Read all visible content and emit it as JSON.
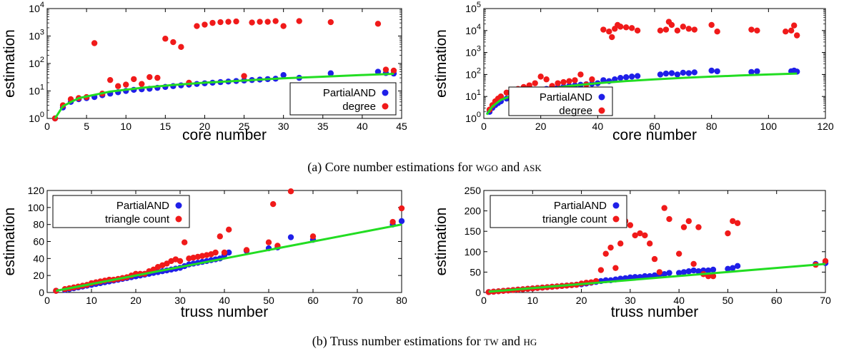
{
  "captions": {
    "a": "(a) Core number estimations for WGO and ASK",
    "b": "(b) Truss number estimations for TW and HG"
  },
  "colors": {
    "partial": "#1f1fe8",
    "other": "#f01a1a",
    "line": "#22dd22"
  },
  "chart_data": [
    {
      "type": "scatter",
      "xlabel": "core number",
      "ylabel": "estimation",
      "xlim": [
        0,
        45
      ],
      "ylim": [
        1,
        10000
      ],
      "yscale": "log",
      "xticks": [
        0,
        5,
        10,
        15,
        20,
        25,
        30,
        35,
        40,
        45
      ],
      "yticks": [
        1,
        10,
        100,
        1000,
        10000
      ],
      "ytick_labels": [
        {
          "b": "10",
          "e": "0"
        },
        {
          "b": "10",
          "e": "1"
        },
        {
          "b": "10",
          "e": "2"
        },
        {
          "b": "10",
          "e": "3"
        },
        {
          "b": "10",
          "e": "4"
        }
      ],
      "legend_position": "lower-right",
      "line": {
        "x": [
          1,
          2,
          4,
          8,
          12,
          16,
          20,
          25,
          30,
          35,
          40,
          44
        ],
        "y": [
          1,
          2.8,
          5.5,
          9.5,
          13,
          16.5,
          20,
          24,
          29,
          33,
          38,
          42
        ]
      },
      "series": [
        {
          "name": "PartialAND",
          "color": "blue",
          "x": [
            1,
            2,
            3,
            4,
            5,
            6,
            7,
            8,
            9,
            10,
            11,
            12,
            13,
            14,
            15,
            16,
            17,
            18,
            19,
            20,
            21,
            22,
            23,
            24,
            25,
            26,
            27,
            28,
            29,
            30,
            32,
            36,
            42,
            43,
            44
          ],
          "y": [
            1,
            2.5,
            4,
            5,
            5.5,
            6,
            7,
            8,
            9,
            10,
            11,
            11.5,
            12,
            13,
            14,
            15,
            16,
            17,
            18,
            19,
            20,
            21,
            22,
            23,
            24,
            25,
            26,
            27,
            28,
            38,
            30,
            44,
            50,
            45,
            43
          ]
        },
        {
          "name": "degree",
          "color": "red",
          "x": [
            1,
            2,
            3,
            4,
            5,
            6,
            7,
            8,
            9,
            10,
            11,
            12,
            13,
            14,
            15,
            16,
            17,
            18,
            19,
            20,
            21,
            22,
            23,
            24,
            25,
            26,
            27,
            28,
            29,
            30,
            32,
            36,
            42,
            43,
            44
          ],
          "y": [
            1,
            3,
            5,
            5.5,
            6,
            550,
            8,
            25,
            15,
            17,
            27,
            18,
            32,
            30,
            800,
            600,
            400,
            20,
            2300,
            2600,
            3000,
            3200,
            3300,
            3400,
            35,
            3100,
            3300,
            3300,
            3500,
            2300,
            3500,
            3200,
            2800,
            60,
            55
          ]
        }
      ]
    },
    {
      "type": "scatter",
      "xlabel": "core number",
      "ylabel": "estimation",
      "xlim": [
        0,
        120
      ],
      "ylim": [
        1,
        100000
      ],
      "yscale": "log",
      "xticks": [
        0,
        20,
        40,
        60,
        80,
        100,
        120
      ],
      "yticks": [
        1,
        10,
        100,
        1000,
        10000,
        100000
      ],
      "ytick_labels": [
        {
          "b": "10",
          "e": "0"
        },
        {
          "b": "10",
          "e": "1"
        },
        {
          "b": "10",
          "e": "2"
        },
        {
          "b": "10",
          "e": "3"
        },
        {
          "b": "10",
          "e": "4"
        },
        {
          "b": "10",
          "e": "5"
        }
      ],
      "legend_position": "lower-left",
      "line": {
        "x": [
          1,
          3,
          6,
          10,
          15,
          20,
          30,
          40,
          50,
          60,
          70,
          80,
          90,
          100,
          110
        ],
        "y": [
          1.5,
          3.5,
          7,
          11,
          15,
          20,
          30,
          40,
          50,
          60,
          70,
          80,
          90,
          100,
          110
        ]
      },
      "series": [
        {
          "name": "PartialAND",
          "color": "blue",
          "x": [
            2,
            3,
            4,
            5,
            6,
            8,
            10,
            12,
            14,
            16,
            18,
            20,
            22,
            24,
            26,
            28,
            30,
            32,
            34,
            36,
            38,
            40,
            42,
            44,
            46,
            48,
            50,
            52,
            54,
            62,
            64,
            66,
            68,
            70,
            72,
            74,
            80,
            82,
            94,
            96,
            108,
            109,
            110
          ],
          "y": [
            2,
            3,
            4,
            5,
            6,
            8,
            10,
            12,
            14,
            16,
            18,
            20,
            22,
            24,
            26,
            28,
            30,
            32,
            34,
            36,
            38,
            40,
            55,
            50,
            60,
            70,
            75,
            80,
            85,
            100,
            110,
            115,
            100,
            120,
            115,
            125,
            150,
            140,
            130,
            140,
            140,
            150,
            135
          ]
        },
        {
          "name": "degree",
          "color": "red",
          "x": [
            2,
            3,
            4,
            5,
            6,
            8,
            10,
            12,
            14,
            16,
            18,
            20,
            22,
            24,
            26,
            28,
            30,
            32,
            34,
            36,
            38,
            42,
            44,
            45,
            46,
            47,
            48,
            50,
            52,
            54,
            62,
            64,
            65,
            66,
            68,
            70,
            72,
            74,
            80,
            82,
            94,
            96,
            106,
            108,
            109,
            110
          ],
          "y": [
            2.5,
            4,
            6,
            8,
            10,
            15,
            18,
            22,
            27,
            32,
            40,
            80,
            60,
            30,
            40,
            45,
            50,
            55,
            100,
            35,
            60,
            11000,
            9000,
            5000,
            12000,
            18000,
            15000,
            14000,
            13000,
            10000,
            10000,
            11000,
            25000,
            18000,
            10000,
            15000,
            12000,
            11000,
            18000,
            9000,
            11000,
            10000,
            9000,
            10000,
            17000,
            6000
          ]
        }
      ]
    },
    {
      "type": "scatter",
      "xlabel": "truss number",
      "ylabel": "estimation",
      "xlim": [
        0,
        80
      ],
      "ylim": [
        0,
        120
      ],
      "yscale": "linear",
      "xticks": [
        0,
        10,
        20,
        30,
        40,
        50,
        60,
        70,
        80
      ],
      "yticks": [
        0,
        20,
        40,
        60,
        80,
        100,
        120
      ],
      "ytick_labels": [
        "0",
        "20",
        "40",
        "60",
        "80",
        "100",
        "120"
      ],
      "legend_position": "top-left",
      "line": {
        "x": [
          2,
          80
        ],
        "y": [
          2,
          80
        ]
      },
      "series": [
        {
          "name": "PartialAND",
          "color": "blue",
          "x": [
            2,
            4,
            5,
            6,
            7,
            8,
            9,
            10,
            11,
            12,
            13,
            14,
            15,
            16,
            17,
            18,
            19,
            20,
            21,
            22,
            23,
            24,
            25,
            26,
            27,
            28,
            29,
            30,
            31,
            32,
            33,
            34,
            35,
            36,
            37,
            38,
            39,
            40,
            41,
            45,
            50,
            52,
            55,
            60,
            78,
            80
          ],
          "y": [
            2,
            3,
            4,
            5,
            6,
            7,
            8,
            9,
            10,
            11,
            12,
            13,
            14,
            15,
            16,
            17,
            18,
            19,
            20,
            21,
            22,
            23,
            24,
            25,
            26,
            27,
            28,
            29,
            31,
            33,
            34,
            35,
            36,
            37,
            38,
            39,
            40,
            44,
            47,
            49,
            52,
            53,
            65,
            62,
            80,
            84
          ]
        },
        {
          "name": "triangle count",
          "color": "red",
          "x": [
            2,
            4,
            5,
            6,
            7,
            8,
            9,
            10,
            11,
            12,
            13,
            14,
            15,
            16,
            17,
            18,
            19,
            20,
            21,
            22,
            23,
            24,
            25,
            26,
            27,
            28,
            29,
            30,
            31,
            32,
            33,
            34,
            35,
            36,
            37,
            38,
            39,
            40,
            41,
            45,
            50,
            51,
            52,
            55,
            60,
            78,
            80
          ],
          "y": [
            2,
            4,
            5,
            6,
            7,
            8,
            9,
            11,
            12,
            13,
            14,
            15,
            15,
            16,
            17,
            18,
            20,
            22,
            22,
            22,
            25,
            27,
            30,
            32,
            34,
            37,
            39,
            37,
            59,
            40,
            41,
            42,
            43,
            44,
            45,
            47,
            66,
            47,
            74,
            50,
            59,
            104,
            55,
            119,
            66,
            83,
            99
          ]
        }
      ]
    },
    {
      "type": "scatter",
      "xlabel": "truss number",
      "ylabel": "estimation",
      "xlim": [
        0,
        70
      ],
      "ylim": [
        0,
        250
      ],
      "yscale": "linear",
      "xticks": [
        0,
        10,
        20,
        30,
        40,
        50,
        60,
        70
      ],
      "yticks": [
        0,
        50,
        100,
        150,
        200,
        250
      ],
      "ytick_labels": [
        "0",
        "50",
        "100",
        "150",
        "200",
        "250"
      ],
      "legend_position": "top-left",
      "line": {
        "x": [
          1,
          70
        ],
        "y": [
          2,
          70
        ]
      },
      "series": [
        {
          "name": "PartialAND",
          "color": "blue",
          "x": [
            1,
            2,
            3,
            4,
            5,
            6,
            7,
            8,
            9,
            10,
            11,
            12,
            13,
            14,
            15,
            16,
            17,
            18,
            19,
            20,
            21,
            22,
            23,
            24,
            25,
            26,
            27,
            28,
            29,
            30,
            31,
            32,
            33,
            34,
            35,
            36,
            37,
            38,
            40,
            41,
            42,
            43,
            44,
            45,
            46,
            47,
            50,
            51,
            52,
            68,
            70
          ],
          "y": [
            1,
            2,
            3,
            4,
            5,
            6,
            7,
            8,
            9,
            10,
            11,
            12,
            13,
            14,
            15,
            16,
            17,
            18,
            19,
            20,
            22,
            24,
            26,
            28,
            30,
            30,
            32,
            34,
            35,
            37,
            38,
            38,
            40,
            40,
            42,
            44,
            45,
            48,
            48,
            50,
            52,
            54,
            52,
            54,
            54,
            56,
            58,
            60,
            65,
            70,
            72
          ]
        },
        {
          "name": "triangle count",
          "color": "red",
          "x": [
            1,
            2,
            3,
            4,
            5,
            6,
            7,
            8,
            9,
            10,
            11,
            12,
            13,
            14,
            15,
            16,
            17,
            18,
            19,
            20,
            21,
            22,
            23,
            24,
            25,
            26,
            27,
            28,
            29,
            30,
            31,
            32,
            33,
            34,
            35,
            36,
            37,
            38,
            40,
            41,
            42,
            43,
            44,
            45,
            46,
            47,
            50,
            51,
            52,
            68,
            70
          ],
          "y": [
            1,
            2,
            3,
            4,
            5,
            6,
            7,
            8,
            9,
            10,
            11,
            12,
            13,
            14,
            15,
            16,
            17,
            18,
            19,
            22,
            24,
            25,
            28,
            55,
            95,
            110,
            60,
            120,
            175,
            165,
            140,
            145,
            140,
            120,
            82,
            50,
            207,
            180,
            95,
            160,
            175,
            70,
            160,
            45,
            40,
            40,
            145,
            175,
            170,
            68,
            77
          ]
        }
      ]
    }
  ]
}
